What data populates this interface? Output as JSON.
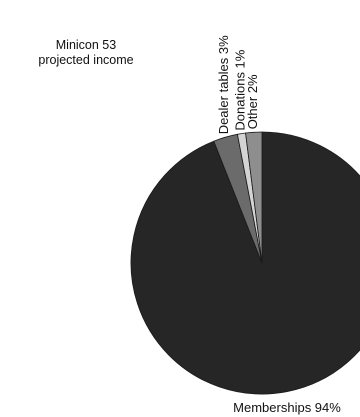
{
  "chart_data": {
    "type": "pie",
    "title_lines": [
      "Minicon 53",
      "projected income"
    ],
    "categories": [
      "Memberships",
      "Dealer tables",
      "Donations",
      "Other"
    ],
    "values": [
      94,
      3,
      1,
      2
    ],
    "labels": [
      "Memberships 94%",
      "Dealer tables 3%",
      "Donations 1%",
      "Other 2%"
    ],
    "colors": [
      "#262626",
      "#6b6b6b",
      "#d4d4d4",
      "#8e8e8e"
    ],
    "legend": "none"
  }
}
